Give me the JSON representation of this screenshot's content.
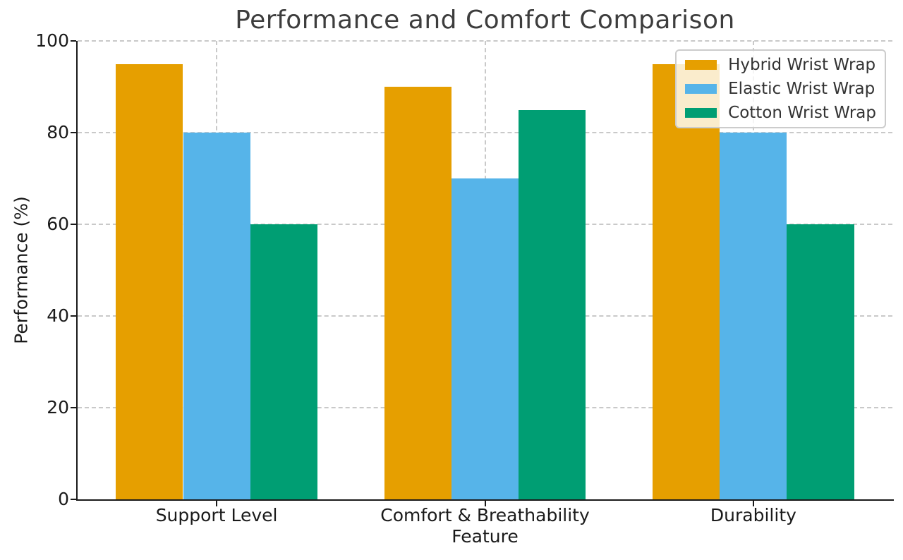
{
  "chart_data": {
    "type": "bar",
    "title": "Performance and Comfort Comparison",
    "xlabel": "Feature",
    "ylabel": "Performance (%)",
    "categories": [
      "Support Level",
      "Comfort & Breathability",
      "Durability"
    ],
    "series": [
      {
        "name": "Hybrid Wrist Wrap",
        "color": "#E69F00",
        "values": [
          95,
          90,
          95
        ]
      },
      {
        "name": "Elastic Wrist Wrap",
        "color": "#56B4E9",
        "values": [
          80,
          70,
          80
        ]
      },
      {
        "name": "Cotton Wrist Wrap",
        "color": "#009E73",
        "values": [
          60,
          85,
          60
        ]
      }
    ],
    "ylim": [
      0,
      100
    ],
    "yticks": [
      0,
      20,
      40,
      60,
      80,
      100
    ],
    "grid": {
      "style": "dashed",
      "color": "#c9c9c9",
      "axisbelow": true
    },
    "legend_position": "upper right",
    "colors": {
      "spine": "#1a1a1a",
      "grid": "#c9c9c9",
      "title_text": "#3d3d3d",
      "tick_text": "#1a1a1a",
      "background": "#ffffff"
    }
  }
}
